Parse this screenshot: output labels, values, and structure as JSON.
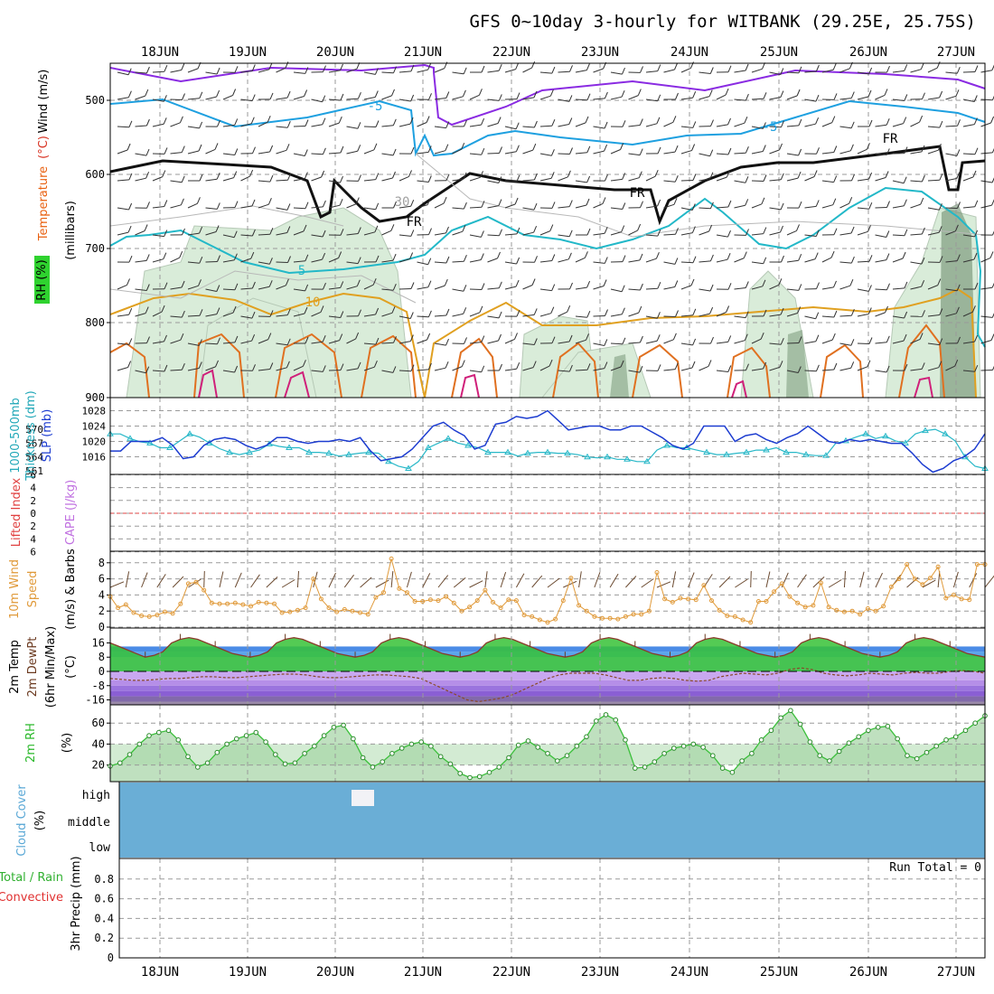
{
  "title": "GFS 0~10day 3-hourly for WITBANK (29.25E, 25.75S)",
  "dates": [
    "18JUN",
    "19JUN",
    "20JUN",
    "21JUN",
    "22JUN",
    "23JUN",
    "24JUN",
    "25JUN",
    "26JUN",
    "27JUN"
  ],
  "colors": {
    "rh_green": "#d9ecd9",
    "temp_purple": "#8a2be2",
    "temp_blue": "#1ea0e0",
    "temp_cyan": "#22b8c8",
    "temp_orange": "#e0a020",
    "temp_dark_orange": "#e07020",
    "temp_magenta": "#d0207a",
    "thickness": "#28b8c8",
    "slp": "#1c3cd0",
    "wind10": "#e09a3a",
    "temp_fill": "#36c236",
    "rh2m": "#3cc03c",
    "cloud": "#6aaed6"
  },
  "panels": {
    "upper": {
      "ylabel_rh": "RH (%)",
      "ylabel_temp": "Temperature",
      "ylabel_temp_unit": "(°C)",
      "ylabel_wind": "Wind (m/s)",
      "ylabel_mb": "(millibars)",
      "labels": {
        "fr1": "FR",
        "fr2": "FR",
        "fr3": "FR",
        "fr4": "FR",
        "c30": "30",
        "m5a": "-5",
        "m5b": "-5",
        "p5": "5",
        "p10": "10"
      }
    },
    "thickness_slp": {
      "ylabel_thick": "1000-500mb",
      "ylabel_thick2": "Thickness (dm)",
      "ylabel_slp": "SLP (mb)"
    },
    "cape": {
      "ylabel_li": "Lifted Index",
      "ylabel_cape": "CAPE (J/kg)"
    },
    "wind10m": {
      "ylabel1": "10m Wind",
      "ylabel2": "Speed",
      "ylabel3": "(m/s) & Barbs"
    },
    "temp2m": {
      "ylabel1": "2m Temp",
      "ylabel2": "2m DewPt",
      "ylabel3": "(6hr Min/Max)",
      "ylabel_unit": "(°C)"
    },
    "rh2m": {
      "ylabel1": "2m RH",
      "ylabel_unit": "(%)"
    },
    "cloud": {
      "ylabel1": "Cloud Cover",
      "ylabel_unit": "(%)",
      "levels": [
        "high",
        "middle",
        "low"
      ]
    },
    "precip": {
      "ylabel1": "Total / Rain",
      "ylabel2": "Convective",
      "ylabel3": "3hr Precip (mm)",
      "run_total": "Run Total = 0"
    }
  },
  "chart_data": {
    "type": "line",
    "x_unit": "3-hourly steps from 17JUN 12Z",
    "upper_air": {
      "y_label": "millibars",
      "yticks": [
        500,
        600,
        700,
        800,
        900
      ],
      "ylim": [
        900,
        440
      ],
      "contours": [
        "-10 (purple)",
        "-5",
        "FR (0)",
        "5",
        "10",
        "15",
        "20"
      ]
    },
    "thickness_slp": {
      "thickness_ticks": [
        561,
        564,
        567,
        570
      ],
      "slp_ticks": [
        1016,
        1020,
        1024,
        1028
      ],
      "series": [
        {
          "name": "1000-500mb Thickness (dm)",
          "values": [
            569.0,
            569.0,
            568.0,
            567.3,
            567.0,
            566.0,
            566.0,
            567.5,
            569.0,
            568.3,
            567.0,
            565.8,
            565.0,
            564.5,
            565.0,
            565.5,
            566.8,
            566.3,
            566.0,
            566.0,
            565.0,
            565.0,
            564.8,
            564.2,
            564.5,
            564.8,
            565.0,
            564.8,
            563.0,
            562.0,
            561.5,
            563.0,
            566.0,
            567.0,
            568.0,
            567.0,
            566.5,
            566.0,
            565.0,
            565.0,
            565.0,
            564.2,
            564.8,
            565.0,
            565.0,
            564.8,
            564.8,
            564.5,
            564.0,
            563.8,
            564.0,
            563.5,
            563.5,
            563.0,
            563.0,
            565.5,
            566.5,
            566.0,
            566.0,
            565.5,
            565.0,
            564.5,
            564.5,
            564.8,
            565.0,
            565.5,
            565.5,
            566.0,
            565.0,
            565.0,
            564.5,
            564.3,
            564.3,
            567.0,
            567.5,
            568.3,
            569.0,
            568.0,
            568.5,
            567.5,
            567.0,
            569.0,
            569.7,
            570.0,
            569.0,
            567.5,
            564.0,
            562.0,
            561.5
          ]
        },
        {
          "name": "SLP (mb)",
          "values": [
            1017.5,
            1017.5,
            1020,
            1020,
            1020,
            1021,
            1019,
            1015.5,
            1016,
            1019,
            1020.5,
            1021,
            1020.5,
            1019,
            1018,
            1019,
            1021,
            1021,
            1020,
            1019.5,
            1020,
            1020,
            1020.5,
            1020,
            1021,
            1017.5,
            1015,
            1015.5,
            1016,
            1018,
            1021,
            1024,
            1025,
            1023,
            1021.5,
            1018,
            1019,
            1024.5,
            1025,
            1026.5,
            1026,
            1026.5,
            1028,
            1025.5,
            1023,
            1023.5,
            1024,
            1024,
            1023,
            1023,
            1024,
            1024,
            1022.5,
            1021,
            1019,
            1018,
            1019.5,
            1024,
            1024,
            1024,
            1020,
            1021.5,
            1022,
            1020.5,
            1019.5,
            1021,
            1022,
            1024,
            1022,
            1020,
            1019.5,
            1020.5,
            1020,
            1020.5,
            1020,
            1019.5,
            1019.5,
            1017,
            1014,
            1012,
            1013,
            1015,
            1016,
            1018,
            1022
          ]
        }
      ]
    },
    "lifted_index": {
      "yticks": [
        -6,
        -4,
        -2,
        0,
        2,
        4,
        6
      ],
      "values": []
    },
    "wind10m": {
      "yticks": [
        0,
        2,
        4,
        6,
        8
      ],
      "ylim": [
        0,
        9
      ],
      "values": [
        3.8,
        2.4,
        2.8,
        1.8,
        1.4,
        1.3,
        1.5,
        1.9,
        1.7,
        2.9,
        5.4,
        5.6,
        4.6,
        3.0,
        2.9,
        2.9,
        3.0,
        2.8,
        2.6,
        3.1,
        3.0,
        2.9,
        1.8,
        1.9,
        2.1,
        2.4,
        6.0,
        3.5,
        2.4,
        1.9,
        2.2,
        2.0,
        1.8,
        1.6,
        3.7,
        4.3,
        8.5,
        4.8,
        4.3,
        3.2,
        3.2,
        3.4,
        3.3,
        3.8,
        3.0,
        2.0,
        2.5,
        3.3,
        4.6,
        3.1,
        2.4,
        3.4,
        3.3,
        1.5,
        1.3,
        0.9,
        0.6,
        1.0,
        3.3,
        6.1,
        2.7,
        2.0,
        1.3,
        1.1,
        1.1,
        1.0,
        1.3,
        1.6,
        1.6,
        2.0,
        6.8,
        3.5,
        3.1,
        3.6,
        3.5,
        3.4,
        5.2,
        3.3,
        2.1,
        1.4,
        1.3,
        0.9,
        0.6,
        3.2,
        3.2,
        4.4,
        5.4,
        3.8,
        3.0,
        2.5,
        2.7,
        5.5,
        2.5,
        2.1,
        1.9,
        2.0,
        1.6,
        2.3,
        2.0,
        2.6,
        5.0,
        6.0,
        7.8,
        6.0,
        5.3,
        6.1,
        7.5,
        3.6,
        4.0,
        3.5,
        3.4,
        7.8,
        7.8
      ]
    },
    "temp2m": {
      "yticks": [
        -16,
        -8,
        0,
        8,
        16
      ],
      "ylim": [
        -19,
        20
      ],
      "temperature": [
        16,
        14,
        12,
        10,
        8,
        9,
        11,
        16,
        18,
        19,
        18,
        16,
        14,
        12,
        10,
        9,
        8,
        9,
        11,
        16,
        18,
        19,
        18,
        16,
        14,
        12,
        10,
        9,
        8,
        9,
        11,
        16,
        18,
        19,
        18,
        16,
        14,
        12,
        10,
        9,
        8,
        9,
        11,
        16,
        18,
        19,
        18,
        16,
        14,
        12,
        10,
        9,
        8,
        9,
        11,
        16,
        18,
        19,
        18,
        16,
        14,
        12,
        10,
        9,
        8,
        9,
        11,
        16,
        18,
        19,
        18,
        16,
        14,
        12,
        10,
        9,
        8,
        9,
        11,
        16,
        18,
        19,
        18,
        16,
        14,
        12,
        10,
        9,
        8,
        9,
        11,
        16,
        18,
        19,
        18,
        16,
        14,
        12,
        10,
        9,
        8
      ],
      "dewpoint": [
        -4,
        -4.5,
        -5,
        -5,
        -4.5,
        -4,
        -4,
        -3.5,
        -3,
        -3,
        -3.5,
        -3.5,
        -3,
        -2.5,
        -2,
        -1.5,
        -1.5,
        -2,
        -3,
        -3.5,
        -3.5,
        -3,
        -2.5,
        -2,
        -2,
        -2.5,
        -3,
        -4,
        -7,
        -10,
        -13,
        -16,
        -17,
        -16,
        -15,
        -13,
        -10,
        -7,
        -4,
        -2,
        -1,
        -1,
        -1,
        -2,
        -3.5,
        -5,
        -5,
        -4,
        -3.5,
        -4,
        -5,
        -5.5,
        -5,
        -3,
        -2,
        -1,
        -1.5,
        -2,
        -1,
        1,
        2,
        1,
        -1,
        -2,
        -2.5,
        -2,
        -1,
        -1.5,
        -2,
        -1,
        -0.5,
        -1,
        -1,
        0,
        0.5,
        0,
        -1
      ]
    },
    "rh2m": {
      "yticks": [
        20,
        40,
        60
      ],
      "ylim": [
        5,
        73
      ],
      "values": [
        19,
        22,
        30,
        40,
        48,
        51,
        53,
        44,
        28,
        18,
        22,
        32,
        40,
        45,
        48,
        51,
        42,
        30,
        21,
        22,
        31,
        38,
        48,
        56,
        58,
        45,
        27,
        18,
        23,
        31,
        36,
        40,
        42,
        38,
        28,
        21,
        12,
        8,
        9,
        13,
        18,
        27,
        39,
        43,
        37,
        31,
        24,
        29,
        38,
        47,
        62,
        68,
        63,
        44,
        17,
        18,
        23,
        31,
        36,
        38,
        40,
        37,
        29,
        17,
        13,
        24,
        31,
        44,
        53,
        65,
        72,
        59,
        42,
        29,
        24,
        33,
        41,
        47,
        53,
        56,
        57,
        45,
        29,
        26,
        32,
        38,
        44,
        47,
        53,
        60,
        67
      ]
    },
    "cloud_cover": {
      "levels": [
        "high",
        "middle",
        "low"
      ],
      "ytick_labels": [
        "high",
        "middle",
        "low"
      ]
    },
    "precip": {
      "yticks": [
        0,
        0.2,
        0.4,
        0.6,
        0.8
      ],
      "ylim": [
        0,
        1.0
      ],
      "total": [],
      "convective": []
    }
  }
}
